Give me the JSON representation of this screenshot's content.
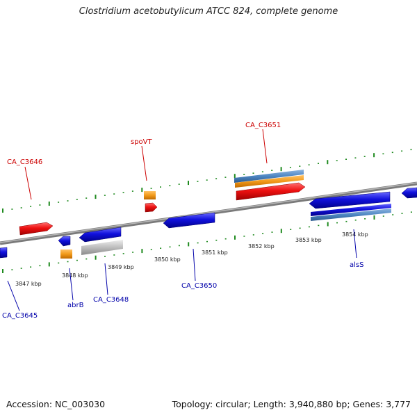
{
  "title": "Clostridium acetobutylicum ATCC 824, complete genome",
  "footer": {
    "accession": "Accession: NC_003030",
    "topology": "Topology: circular; Length: 3,940,880 bp; Genes: 3,777"
  },
  "colors": {
    "forward_gene": "#ee1111",
    "reverse_gene": "#1111dd",
    "orange_feature": "#f29a1a",
    "steelblue_feature": "#4d86c2",
    "gray_feature": "#bdbdbd",
    "scale_ticks": "#1f8a1f",
    "forward_label": "#cc0000",
    "reverse_label": "#0000aa"
  },
  "ticks": [
    "3847 kbp",
    "3848 kbp",
    "3849 kbp",
    "3850 kbp",
    "3851 kbp",
    "3852 kbp",
    "3853 kbp",
    "3854 kbp"
  ],
  "labels": {
    "forward": [
      "CA_C3646",
      "spoVT",
      "CA_C3651"
    ],
    "reverse": [
      "CA_C3645",
      "abrB",
      "CA_C3648",
      "CA_C3650",
      "alsS"
    ]
  }
}
